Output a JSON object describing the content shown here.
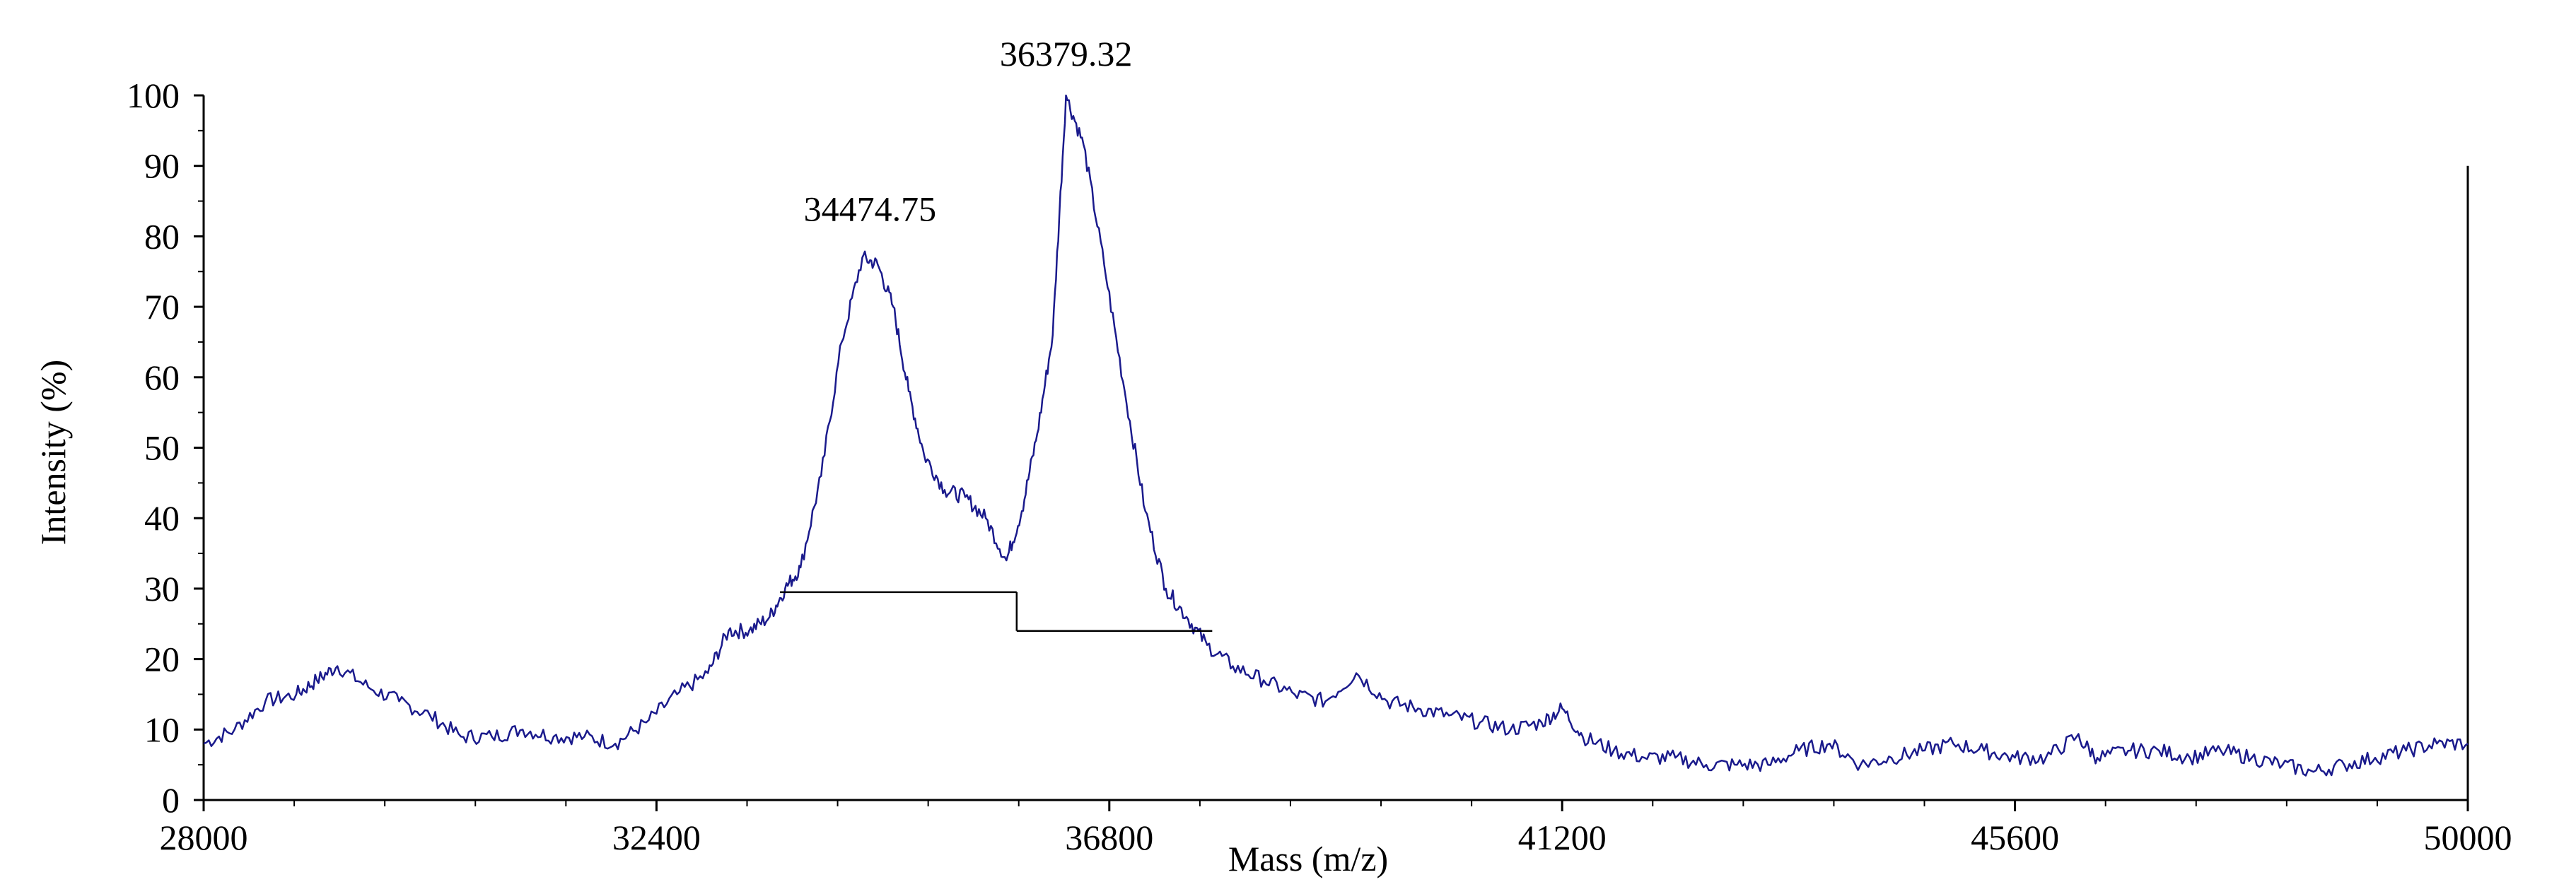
{
  "chart_data": {
    "type": "line",
    "title": "",
    "xlabel": "Mass (m/z)",
    "ylabel": "Intensity (%)",
    "xlim": [
      28000,
      50000
    ],
    "ylim": [
      0,
      100
    ],
    "x_ticks": [
      28000,
      32400,
      36800,
      41200,
      45600,
      50000
    ],
    "x_tick_labels": [
      "28000",
      "32400",
      "36800",
      "41200",
      "45600",
      "50000"
    ],
    "y_ticks": [
      0,
      10,
      20,
      30,
      40,
      50,
      60,
      70,
      80,
      90,
      100
    ],
    "y_tick_labels": [
      "0",
      "10",
      "20",
      "30",
      "40",
      "50",
      "60",
      "70",
      "80",
      "90",
      "100"
    ],
    "grid": false,
    "legend": "none",
    "colors": {
      "series": "#1a1a8c",
      "axis": "#000000",
      "baseline": "#000000"
    },
    "series": [
      {
        "points": [
          [
            28000,
            8
          ],
          [
            28300,
            10
          ],
          [
            28600,
            14
          ],
          [
            28900,
            15
          ],
          [
            29100,
            17
          ],
          [
            29300,
            19
          ],
          [
            29600,
            16
          ],
          [
            29900,
            14
          ],
          [
            30200,
            12
          ],
          [
            30500,
            9
          ],
          [
            30800,
            9
          ],
          [
            31100,
            10
          ],
          [
            31400,
            9
          ],
          [
            31700,
            9
          ],
          [
            32000,
            8
          ],
          [
            32300,
            11
          ],
          [
            32600,
            15
          ],
          [
            32900,
            18
          ],
          [
            33100,
            24
          ],
          [
            33300,
            24
          ],
          [
            33500,
            26
          ],
          [
            33650,
            30
          ],
          [
            33800,
            33
          ],
          [
            34000,
            46
          ],
          [
            34200,
            65
          ],
          [
            34400,
            77
          ],
          [
            34550,
            76
          ],
          [
            34700,
            70
          ],
          [
            34850,
            58
          ],
          [
            35000,
            49
          ],
          [
            35200,
            44
          ],
          [
            35400,
            43
          ],
          [
            35600,
            40
          ],
          [
            35800,
            34
          ],
          [
            35950,
            41
          ],
          [
            36100,
            52
          ],
          [
            36250,
            66
          ],
          [
            36379,
            100
          ],
          [
            36550,
            93
          ],
          [
            36750,
            76
          ],
          [
            36950,
            58
          ],
          [
            37150,
            41
          ],
          [
            37350,
            30
          ],
          [
            37550,
            26
          ],
          [
            37750,
            22
          ],
          [
            38000,
            19
          ],
          [
            38300,
            17
          ],
          [
            38600,
            15
          ],
          [
            38900,
            14
          ],
          [
            39200,
            18
          ],
          [
            39500,
            14
          ],
          [
            39800,
            13
          ],
          [
            40100,
            12
          ],
          [
            40400,
            11
          ],
          [
            40700,
            10
          ],
          [
            41000,
            11
          ],
          [
            41200,
            13
          ],
          [
            41400,
            9
          ],
          [
            41700,
            7
          ],
          [
            42000,
            6
          ],
          [
            42300,
            6
          ],
          [
            42600,
            5
          ],
          [
            42900,
            5
          ],
          [
            43200,
            5
          ],
          [
            43500,
            7
          ],
          [
            43800,
            8
          ],
          [
            44100,
            5
          ],
          [
            44400,
            6
          ],
          [
            44700,
            7
          ],
          [
            45000,
            8
          ],
          [
            45300,
            7
          ],
          [
            45600,
            6
          ],
          [
            45900,
            6
          ],
          [
            46200,
            9
          ],
          [
            46400,
            6
          ],
          [
            46700,
            7
          ],
          [
            47000,
            7
          ],
          [
            47300,
            6
          ],
          [
            47600,
            7
          ],
          [
            47900,
            6
          ],
          [
            48200,
            5
          ],
          [
            48500,
            4
          ],
          [
            48800,
            5
          ],
          [
            49100,
            6
          ],
          [
            49400,
            7
          ],
          [
            49700,
            8
          ],
          [
            50000,
            8
          ]
        ]
      }
    ],
    "annotations": [
      {
        "text": "34474.75",
        "x": 34474.75,
        "y": 78
      },
      {
        "text": "36379.32",
        "x": 36379.32,
        "y": 100
      }
    ],
    "baselines": [
      {
        "x_start": 33600,
        "x_end": 35900,
        "y": 29.5
      },
      {
        "x_start": 35900,
        "x_end": 37800,
        "y": 24,
        "step_from_y": 29.5
      }
    ],
    "right_boundary": {
      "x": 50000,
      "y_top": 90
    }
  }
}
